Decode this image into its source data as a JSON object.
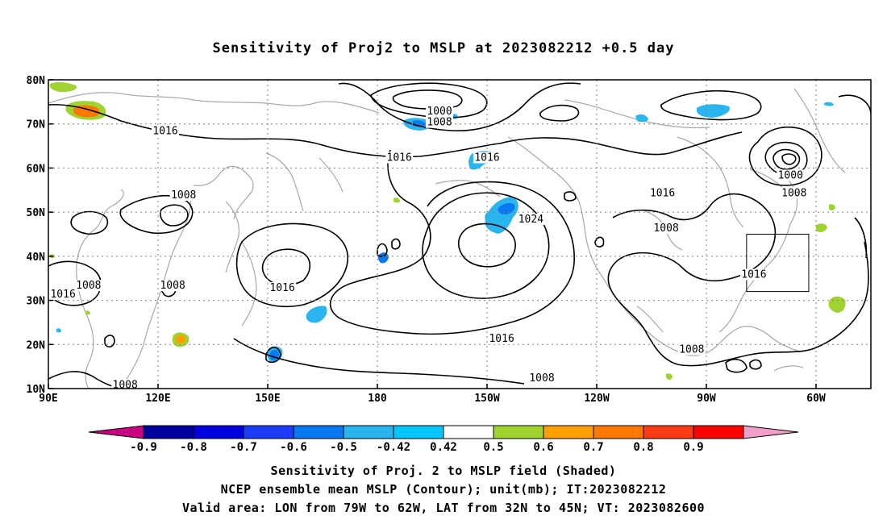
{
  "title": "Sensitivity of Proj2 to MSLP at 2023082212 +0.5 day",
  "captions": [
    "Sensitivity of Proj. 2 to MSLP field (Shaded)",
    "NCEP ensemble mean MSLP (Contour); unit(mb); IT:2023082212",
    "Valid area: LON from 79W to 62W, LAT from 32N to 45N; VT: 2023082600"
  ],
  "chart_data": {
    "type": "heatmap",
    "title": "Sensitivity of Proj2 to MSLP at 2023082212 +0.5 day",
    "x_range_lon_east": [
      90,
      315
    ],
    "y_range_lat": [
      10,
      80
    ],
    "grid": true,
    "x_ticks": [
      {
        "lon": 90,
        "label": "90E"
      },
      {
        "lon": 120,
        "label": "120E"
      },
      {
        "lon": 150,
        "label": "150E"
      },
      {
        "lon": 180,
        "label": "180"
      },
      {
        "lon": 210,
        "label": "150W"
      },
      {
        "lon": 240,
        "label": "120W"
      },
      {
        "lon": 270,
        "label": "90W"
      },
      {
        "lon": 300,
        "label": "60W"
      }
    ],
    "y_ticks": [
      {
        "lat": 10,
        "label": "10N"
      },
      {
        "lat": 20,
        "label": "20N"
      },
      {
        "lat": 30,
        "label": "30N"
      },
      {
        "lat": 40,
        "label": "40N"
      },
      {
        "lat": 50,
        "label": "50N"
      },
      {
        "lat": 60,
        "label": "60N"
      },
      {
        "lat": 70,
        "label": "70N"
      },
      {
        "lat": 80,
        "label": "80N"
      }
    ],
    "colorbar": {
      "labels": [
        "-0.9",
        "-0.8",
        "-0.7",
        "-0.6",
        "-0.5",
        "-0.42",
        "0.42",
        "0.5",
        "0.6",
        "0.7",
        "0.8",
        "0.9"
      ],
      "colors": [
        "#c8007f",
        "#0000a0",
        "#0000e0",
        "#1e3cff",
        "#0a78f0",
        "#2ab4f0",
        "#00c8ff",
        "#ffffff",
        "#a0d232",
        "#ffa000",
        "#ff7800",
        "#ff3c14",
        "#ff0000",
        "#f0a0c8"
      ]
    },
    "validation_box": {
      "lon": [
        281,
        298
      ],
      "lat": [
        32,
        45
      ]
    },
    "contour_labels": [
      {
        "text": "1000",
        "lon": 197,
        "lat": 72.5
      },
      {
        "text": "1008",
        "lon": 197,
        "lat": 70
      },
      {
        "text": "1016",
        "lon": 122,
        "lat": 68
      },
      {
        "text": "1016",
        "lon": 186,
        "lat": 62
      },
      {
        "text": "1016",
        "lon": 210,
        "lat": 62
      },
      {
        "text": "1008",
        "lon": 127,
        "lat": 53.5
      },
      {
        "text": "1024",
        "lon": 222,
        "lat": 48
      },
      {
        "text": "1016",
        "lon": 258,
        "lat": 54
      },
      {
        "text": "1008",
        "lon": 259,
        "lat": 46
      },
      {
        "text": "1000",
        "lon": 293,
        "lat": 58
      },
      {
        "text": "1008",
        "lon": 294,
        "lat": 54
      },
      {
        "text": "1016",
        "lon": 154,
        "lat": 32.5
      },
      {
        "text": "1008",
        "lon": 124,
        "lat": 33
      },
      {
        "text": "1016",
        "lon": 94,
        "lat": 31
      },
      {
        "text": "1008",
        "lon": 101,
        "lat": 33
      },
      {
        "text": "1016",
        "lon": 214,
        "lat": 21
      },
      {
        "text": "1016",
        "lon": 283,
        "lat": 35.5
      },
      {
        "text": "1008",
        "lon": 266,
        "lat": 18.5
      },
      {
        "text": "1008",
        "lon": 225,
        "lat": 12
      },
      {
        "text": "1008",
        "lon": 111,
        "lat": 10.5
      }
    ],
    "shaded_regions": [
      {
        "lon": 101,
        "lat": 73.5,
        "value": 0.55
      },
      {
        "lon": 101,
        "lat": 73.8,
        "value": 0.65
      },
      {
        "lon": 92,
        "lat": 78,
        "value": 0.46
      },
      {
        "lon": 127,
        "lat": 21.5,
        "value": 0.55
      },
      {
        "lon": 150,
        "lat": 17.5,
        "value": -0.46
      },
      {
        "lon": 165,
        "lat": 26,
        "value": -0.46
      },
      {
        "lon": 194,
        "lat": 70,
        "value": -0.46
      },
      {
        "lon": 198,
        "lat": 70.5,
        "value": -0.55
      },
      {
        "lon": 210,
        "lat": 62,
        "value": -0.46
      },
      {
        "lon": 218,
        "lat": 50,
        "value": -0.46
      },
      {
        "lon": 220,
        "lat": 51,
        "value": -0.6
      },
      {
        "lon": 184,
        "lat": 40,
        "value": -0.46
      },
      {
        "lon": 275,
        "lat": 73,
        "value": -0.46
      },
      {
        "lon": 252,
        "lat": 71,
        "value": -0.46
      },
      {
        "lon": 303,
        "lat": 73.5,
        "value": -0.46
      },
      {
        "lon": 307,
        "lat": 28,
        "value": 0.46
      },
      {
        "lon": 303,
        "lat": 46,
        "value": 0.46
      },
      {
        "lon": 306,
        "lat": 51,
        "value": 0.46
      },
      {
        "lon": 266,
        "lat": 13,
        "value": 0.46
      },
      {
        "lon": 182,
        "lat": 52,
        "value": 0.46
      },
      {
        "lon": 98,
        "lat": 27,
        "value": 0.46
      }
    ]
  }
}
